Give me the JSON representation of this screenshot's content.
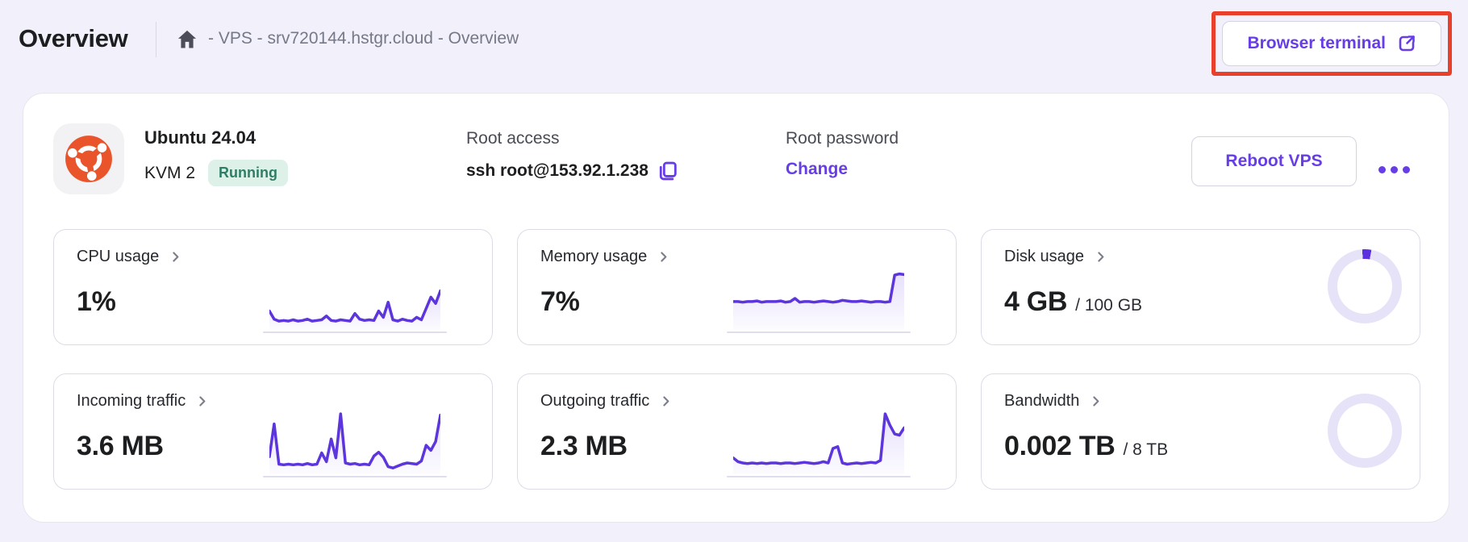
{
  "header": {
    "title": "Overview",
    "breadcrumb": "- VPS - srv720144.hstgr.cloud - Overview",
    "browser_terminal_label": "Browser terminal"
  },
  "server": {
    "os_name": "Ubuntu 24.04",
    "plan": "KVM 2",
    "status": "Running",
    "root_access_label": "Root access",
    "ssh_command": "ssh root@153.92.1.238",
    "root_password_label": "Root password",
    "change_label": "Change",
    "reboot_label": "Reboot VPS"
  },
  "colors": {
    "accent_purple": "#673de6",
    "spark_line": "#5d35dd",
    "donut_track": "#e6e3f8",
    "donut_fill": "#5b2fe0",
    "annotation_red": "#e8402a",
    "status_green_bg": "#def1e9",
    "status_green_text": "#2e7e66",
    "ubuntu_orange": "#e9542b",
    "page_bg": "#f2f1fb"
  },
  "cards": [
    {
      "id": "cpu",
      "label": "CPU usage",
      "value": "1%",
      "suffix": "",
      "visual": "spark",
      "spark": [
        30,
        17,
        14,
        15,
        14,
        16,
        14,
        15,
        17,
        14,
        15,
        16,
        22,
        15,
        14,
        16,
        15,
        14,
        26,
        17,
        15,
        16,
        15,
        30,
        20,
        44,
        16,
        14,
        17,
        15,
        14,
        20,
        16,
        34,
        52,
        42,
        62
      ]
    },
    {
      "id": "memory",
      "label": "Memory usage",
      "value": "7%",
      "suffix": "",
      "visual": "spark",
      "spark": [
        45,
        45,
        44,
        45,
        45,
        46,
        44,
        45,
        45,
        45,
        46,
        44,
        45,
        50,
        44,
        45,
        45,
        44,
        45,
        46,
        45,
        44,
        45,
        47,
        46,
        45,
        45,
        46,
        45,
        44,
        45,
        45,
        44,
        45,
        87,
        89,
        88
      ]
    },
    {
      "id": "disk",
      "label": "Disk usage",
      "value": "4 GB",
      "suffix": "/ 100 GB",
      "visual": "donut",
      "percent": 4
    },
    {
      "id": "incoming",
      "label": "Incoming traffic",
      "value": "3.6 MB",
      "suffix": "",
      "visual": "spark",
      "spark": [
        28,
        80,
        16,
        15,
        16,
        15,
        16,
        15,
        17,
        15,
        16,
        34,
        20,
        56,
        26,
        96,
        18,
        16,
        17,
        15,
        16,
        15,
        29,
        35,
        27,
        12,
        10,
        13,
        16,
        18,
        17,
        16,
        21,
        46,
        38,
        52,
        94
      ]
    },
    {
      "id": "outgoing",
      "label": "Outgoing traffic",
      "value": "2.3 MB",
      "suffix": "",
      "visual": "spark",
      "spark": [
        26,
        20,
        18,
        17,
        18,
        17,
        18,
        17,
        18,
        18,
        17,
        18,
        18,
        17,
        18,
        19,
        18,
        17,
        18,
        20,
        18,
        41,
        44,
        18,
        16,
        17,
        18,
        17,
        18,
        19,
        18,
        22,
        96,
        78,
        64,
        62,
        74
      ]
    },
    {
      "id": "bandwidth",
      "label": "Bandwidth",
      "value": "0.002 TB",
      "suffix": "/ 8 TB",
      "visual": "donut",
      "percent": 0.025
    }
  ]
}
